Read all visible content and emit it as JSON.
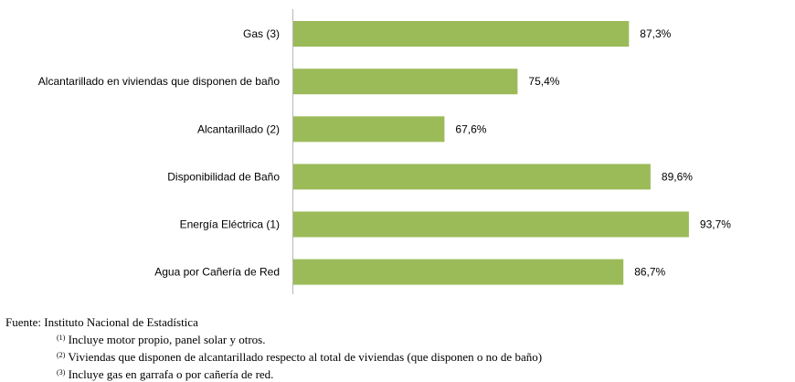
{
  "chart_data": {
    "type": "bar",
    "orientation": "horizontal",
    "categories": [
      "Gas (3)",
      "Alcantarillado en viviendas que disponen de baño",
      "Alcantarillado (2)",
      "Disponibilidad de Baño",
      "Energía Eléctrica (1)",
      "Agua por Cañería de Red"
    ],
    "values": [
      87.3,
      75.4,
      67.6,
      89.6,
      93.7,
      86.7
    ],
    "value_labels": [
      "87,3%",
      "75,4%",
      "67,6%",
      "89,6%",
      "93,7%",
      "86,7%"
    ],
    "xlim": [
      0,
      100
    ],
    "bar_color": "#9bbb59",
    "grid": false,
    "legend": "none"
  },
  "notes": {
    "source": "Fuente: Instituto Nacional de Estadística",
    "footnotes": [
      {
        "mark": "(1)",
        "text": "Incluye motor propio, panel solar y otros."
      },
      {
        "mark": "(2)",
        "text": "Viviendas que disponen de alcantarillado respecto al total de viviendas (que disponen o no de baño)"
      },
      {
        "mark": "(3)",
        "text": "Incluye gas en garrafa o por cañería de red."
      }
    ]
  }
}
